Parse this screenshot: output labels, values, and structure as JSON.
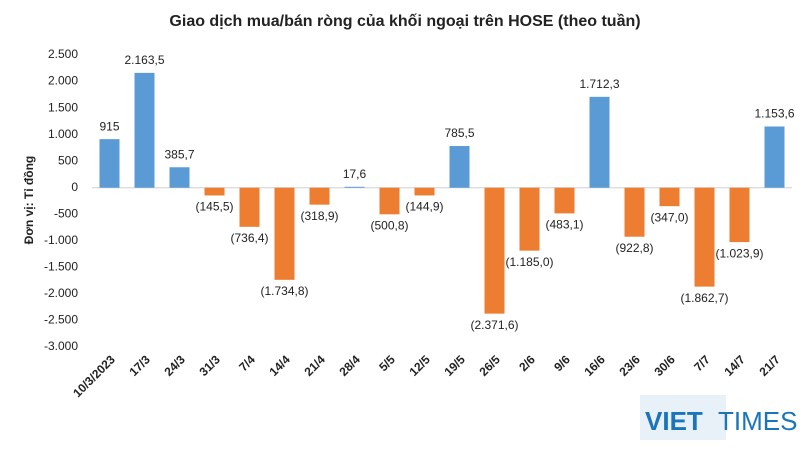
{
  "chart_data": {
    "type": "bar",
    "title": "Giao dịch mua/bán ròng của khối ngoại trên HOSE (theo tuần)",
    "y_label": "Đơn vị: Tỉ đồng",
    "logo": {
      "first": "VIET",
      "second": "TIMES"
    },
    "categories": [
      "10/3/2023",
      "17/3",
      "24/3",
      "31/3",
      "7/4",
      "14/4",
      "21/4",
      "28/4",
      "5/5",
      "12/5",
      "19/5",
      "26/5",
      "2/6",
      "9/6",
      "16/6",
      "23/6",
      "30/6",
      "7/7",
      "14/7",
      "21/7"
    ],
    "values": [
      915,
      2163.5,
      385.7,
      -145.5,
      -736.4,
      -1734.8,
      -318.9,
      17.6,
      -500.8,
      -144.9,
      785.5,
      -2371.6,
      -1185.0,
      -483.1,
      1712.3,
      -922.8,
      -347.0,
      -1862.7,
      -1023.9,
      1153.6
    ],
    "value_labels": [
      "915",
      "2.163,5",
      "385,7",
      "(145,5)",
      "(736,4)",
      "(1.734,8)",
      "(318,9)",
      "17,6",
      "(500,8)",
      "(144,9)",
      "785,5",
      "(2.371,6)",
      "(1.185,0)",
      "(483,1)",
      "1.712,3",
      "(922,8)",
      "(347,0)",
      "(1.862,7)",
      "(1.023,9)",
      "1.153,6"
    ],
    "positive_color": "#5b9bd5",
    "negative_color": "#ed7d31",
    "ylim": [
      -3000,
      2500
    ],
    "yticks": [
      {
        "value": 2500,
        "label": "2.500"
      },
      {
        "value": 2000,
        "label": "2.000"
      },
      {
        "value": 1500,
        "label": "1.500"
      },
      {
        "value": 1000,
        "label": "1.000"
      },
      500,
      0,
      -500,
      {
        "value": -1000,
        "label": "-1.000"
      },
      {
        "value": -1500,
        "label": "-1.500"
      },
      {
        "value": -2000,
        "label": "-2.000"
      },
      {
        "value": -2500,
        "label": "-2.500"
      },
      {
        "value": -3000,
        "label": "-3.000"
      }
    ],
    "grid": false
  }
}
